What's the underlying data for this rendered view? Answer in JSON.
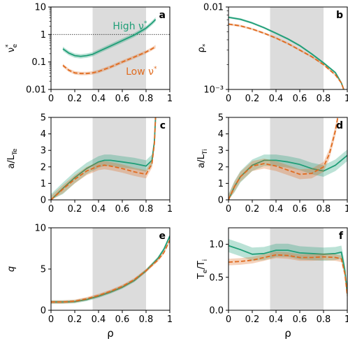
{
  "figure": {
    "xlabel": "ρ",
    "shaded_region": [
      0.35,
      0.8
    ],
    "colors": {
      "high": "#1f9e77",
      "low": "#e06b1f",
      "shade": "#dcdcdc"
    }
  },
  "chart_data": [
    {
      "id": "a",
      "type": "line",
      "panel_label": "a",
      "ylabel": "νe*",
      "yscale": "log",
      "ylim": [
        0.01,
        10
      ],
      "xlim": [
        0,
        1
      ],
      "yticks": [
        0.01,
        0.1,
        1,
        10
      ],
      "ytick_labels": [
        "0.01",
        "0.1",
        "1",
        "10"
      ],
      "xticks": [
        0,
        0.2,
        0.4,
        0.6,
        0.8,
        1
      ],
      "xtick_labels": [
        "0",
        "0.2",
        "0.4",
        "0.6",
        "0.8",
        "1"
      ],
      "reference_line": 1,
      "annotations": [
        {
          "text": "High ν*",
          "series": "high"
        },
        {
          "text": "Low ν*",
          "series": "low"
        }
      ],
      "series": [
        {
          "key": "high",
          "style": "solid",
          "x": [
            0.1,
            0.15,
            0.2,
            0.25,
            0.3,
            0.35,
            0.4,
            0.5,
            0.6,
            0.7,
            0.8,
            0.85,
            0.88
          ],
          "y": [
            0.3,
            0.21,
            0.17,
            0.16,
            0.17,
            0.19,
            0.24,
            0.38,
            0.6,
            0.95,
            1.7,
            2.6,
            3.5
          ],
          "band": 0.2
        },
        {
          "key": "low",
          "style": "dashed",
          "x": [
            0.1,
            0.15,
            0.2,
            0.25,
            0.3,
            0.35,
            0.4,
            0.5,
            0.6,
            0.7,
            0.8,
            0.85,
            0.88
          ],
          "y": [
            0.075,
            0.05,
            0.04,
            0.038,
            0.038,
            0.04,
            0.045,
            0.065,
            0.1,
            0.15,
            0.23,
            0.3,
            0.36
          ],
          "band": 0.15
        }
      ]
    },
    {
      "id": "b",
      "type": "line",
      "panel_label": "b",
      "ylabel": "ρ*",
      "yscale": "log",
      "ylim": [
        0.001,
        0.01
      ],
      "xlim": [
        0,
        1
      ],
      "yticks": [
        0.001,
        0.01
      ],
      "ytick_labels": [
        "10⁻³",
        "0.01"
      ],
      "xticks": [
        0,
        0.2,
        0.4,
        0.6,
        0.8,
        1
      ],
      "xtick_labels": [
        "0",
        "0.2",
        "0.4",
        "0.6",
        "0.8",
        "1"
      ],
      "series": [
        {
          "key": "high",
          "style": "solid",
          "x": [
            0,
            0.1,
            0.2,
            0.3,
            0.4,
            0.5,
            0.6,
            0.7,
            0.8,
            0.9,
            0.95,
            0.97
          ],
          "y": [
            0.0075,
            0.0071,
            0.0064,
            0.0056,
            0.0048,
            0.0041,
            0.0034,
            0.0027,
            0.0021,
            0.0016,
            0.0012,
            0.001
          ],
          "band": 0.03
        },
        {
          "key": "low",
          "style": "dashed",
          "x": [
            0,
            0.1,
            0.2,
            0.3,
            0.4,
            0.5,
            0.6,
            0.7,
            0.8,
            0.9,
            0.95,
            0.97
          ],
          "y": [
            0.0062,
            0.0059,
            0.0054,
            0.0048,
            0.0042,
            0.0036,
            0.003,
            0.0025,
            0.002,
            0.0015,
            0.0012,
            0.001
          ],
          "band": 0.03
        }
      ]
    },
    {
      "id": "c",
      "type": "line",
      "panel_label": "c",
      "ylabel": "a/L_Te",
      "yscale": "linear",
      "ylim": [
        0,
        5
      ],
      "xlim": [
        0,
        1
      ],
      "yticks": [
        0,
        1,
        2,
        3,
        4,
        5
      ],
      "ytick_labels": [
        "0",
        "1",
        "2",
        "3",
        "4",
        "5"
      ],
      "xticks": [
        0,
        0.2,
        0.4,
        0.6,
        0.8,
        1
      ],
      "xtick_labels": [
        "0",
        "0.2",
        "0.4",
        "0.6",
        "0.8",
        "1"
      ],
      "series": [
        {
          "key": "high",
          "style": "solid",
          "x": [
            0,
            0.1,
            0.2,
            0.3,
            0.4,
            0.45,
            0.5,
            0.6,
            0.7,
            0.8,
            0.85,
            0.87,
            0.88
          ],
          "y": [
            0,
            0.7,
            1.35,
            1.9,
            2.3,
            2.4,
            2.4,
            2.3,
            2.2,
            2.05,
            2.4,
            3.5,
            5.0
          ],
          "band": 0.35
        },
        {
          "key": "low",
          "style": "dashed",
          "x": [
            0,
            0.1,
            0.2,
            0.3,
            0.4,
            0.45,
            0.5,
            0.6,
            0.7,
            0.8,
            0.85,
            0.87,
            0.88
          ],
          "y": [
            0,
            0.65,
            1.25,
            1.75,
            2.05,
            2.1,
            2.05,
            1.9,
            1.7,
            1.55,
            2.2,
            3.4,
            5.0
          ],
          "band": 0.25
        }
      ]
    },
    {
      "id": "d",
      "type": "line",
      "panel_label": "d",
      "ylabel": "a/L_Ti",
      "yscale": "linear",
      "ylim": [
        0,
        5
      ],
      "xlim": [
        0,
        1
      ],
      "yticks": [
        0,
        1,
        2,
        3,
        4,
        5
      ],
      "ytick_labels": [
        "0",
        "1",
        "2",
        "3",
        "4",
        "5"
      ],
      "xticks": [
        0,
        0.2,
        0.4,
        0.6,
        0.8,
        1
      ],
      "xtick_labels": [
        "0",
        "0.2",
        "0.4",
        "0.6",
        "0.8",
        "1"
      ],
      "series": [
        {
          "key": "high",
          "style": "solid",
          "x": [
            0,
            0.05,
            0.1,
            0.2,
            0.3,
            0.4,
            0.5,
            0.6,
            0.7,
            0.8,
            0.9,
            1.0
          ],
          "y": [
            0,
            0.8,
            1.4,
            2.1,
            2.4,
            2.4,
            2.3,
            2.15,
            1.9,
            1.75,
            2.1,
            2.7
          ],
          "band": 0.35
        },
        {
          "key": "low",
          "style": "dashed",
          "x": [
            0,
            0.05,
            0.1,
            0.2,
            0.3,
            0.4,
            0.5,
            0.6,
            0.7,
            0.8,
            0.85,
            0.9,
            0.92
          ],
          "y": [
            0,
            0.8,
            1.4,
            2.05,
            2.2,
            2.05,
            1.8,
            1.55,
            1.6,
            2.0,
            2.8,
            4.2,
            5.0
          ],
          "band": 0.3
        }
      ]
    },
    {
      "id": "e",
      "type": "line",
      "panel_label": "e",
      "ylabel": "q",
      "yscale": "linear",
      "ylim": [
        0,
        10
      ],
      "xlim": [
        0,
        1
      ],
      "yticks": [
        0,
        5,
        10
      ],
      "ytick_labels": [
        "0",
        "5",
        "10"
      ],
      "xticks": [
        0,
        0.2,
        0.4,
        0.6,
        0.8,
        1
      ],
      "xtick_labels": [
        "0",
        "0.2",
        "0.4",
        "0.6",
        "0.8",
        "1"
      ],
      "series": [
        {
          "key": "high",
          "style": "solid",
          "x": [
            0,
            0.1,
            0.2,
            0.3,
            0.4,
            0.5,
            0.6,
            0.7,
            0.8,
            0.9,
            0.95,
            1.0
          ],
          "y": [
            1.0,
            1.0,
            1.05,
            1.3,
            1.7,
            2.2,
            2.8,
            3.6,
            4.8,
            6.3,
            7.4,
            9.0
          ],
          "band": 0.2
        },
        {
          "key": "low",
          "style": "dashed",
          "x": [
            0,
            0.1,
            0.2,
            0.3,
            0.4,
            0.5,
            0.6,
            0.7,
            0.8,
            0.9,
            0.95,
            1.0
          ],
          "y": [
            1.0,
            1.0,
            1.1,
            1.4,
            1.8,
            2.3,
            2.9,
            3.7,
            4.8,
            6.1,
            7.0,
            8.5
          ],
          "band": 0.2
        }
      ]
    },
    {
      "id": "f",
      "type": "line",
      "panel_label": "f",
      "ylabel": "Te/Ti",
      "yscale": "linear",
      "ylim": [
        0,
        1.25
      ],
      "xlim": [
        0,
        1
      ],
      "yticks": [
        0,
        0.5,
        1.0
      ],
      "ytick_labels": [
        "0.0",
        "0.5",
        "1.0"
      ],
      "xticks": [
        0,
        0.2,
        0.4,
        0.6,
        0.8,
        1
      ],
      "xtick_labels": [
        "0",
        "0.2",
        "0.4",
        "0.6",
        "0.8",
        "1"
      ],
      "series": [
        {
          "key": "high",
          "style": "solid",
          "x": [
            0,
            0.1,
            0.2,
            0.3,
            0.4,
            0.5,
            0.6,
            0.7,
            0.8,
            0.9,
            0.95,
            0.98,
            1.0
          ],
          "y": [
            0.98,
            0.92,
            0.85,
            0.86,
            0.91,
            0.91,
            0.87,
            0.86,
            0.85,
            0.86,
            0.88,
            0.6,
            0.25
          ],
          "band": 0.1
        },
        {
          "key": "low",
          "style": "dashed",
          "x": [
            0,
            0.1,
            0.2,
            0.3,
            0.4,
            0.5,
            0.6,
            0.7,
            0.8,
            0.9,
            0.95,
            0.98,
            1.0
          ],
          "y": [
            0.73,
            0.74,
            0.76,
            0.8,
            0.84,
            0.83,
            0.8,
            0.8,
            0.81,
            0.8,
            0.78,
            0.55,
            0.22
          ],
          "band": 0.05
        }
      ]
    }
  ]
}
